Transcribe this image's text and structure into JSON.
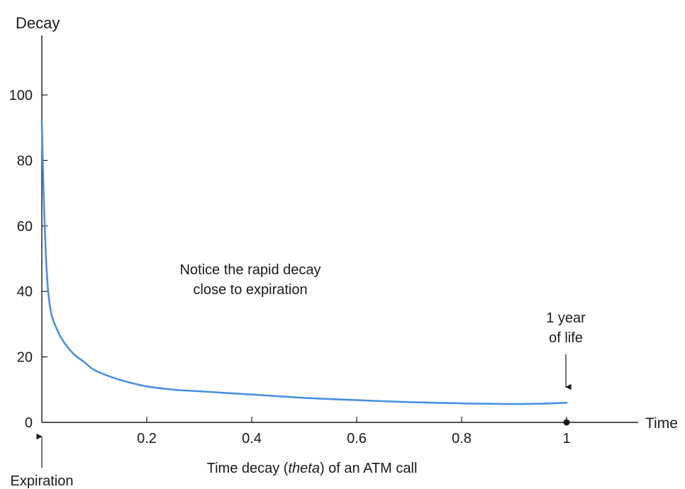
{
  "chart_data": {
    "type": "line",
    "title": "",
    "caption_parts": [
      "Time decay (",
      "theta",
      ") of an ATM call"
    ],
    "ylabel": "Decay",
    "xlabel": "Time",
    "xlim": [
      0,
      1.2
    ],
    "ylim": [
      0,
      118
    ],
    "x_ticks": [
      {
        "value": 0.2,
        "label": "0.2"
      },
      {
        "value": 0.4,
        "label": "0.4"
      },
      {
        "value": 0.6,
        "label": "0.6"
      },
      {
        "value": 0.8,
        "label": "0.8"
      },
      {
        "value": 1.0,
        "label": "1"
      }
    ],
    "y_ticks": [
      {
        "value": 0,
        "label": "0"
      },
      {
        "value": 20,
        "label": "20"
      },
      {
        "value": 40,
        "label": "40"
      },
      {
        "value": 60,
        "label": "60"
      },
      {
        "value": 80,
        "label": "80"
      },
      {
        "value": 100,
        "label": "100"
      }
    ],
    "grid": false,
    "series": [
      {
        "color": "#4a90e2",
        "x": [
          0.0,
          0.002,
          0.005,
          0.008,
          0.012,
          0.016,
          0.02,
          0.03,
          0.04,
          0.06,
          0.08,
          0.1,
          0.13,
          0.16,
          0.2,
          0.25,
          0.3,
          0.35,
          0.4,
          0.5,
          0.6,
          0.7,
          0.8,
          0.85,
          0.9,
          0.95,
          1.0
        ],
        "y": [
          92,
          78,
          62,
          50,
          40,
          35,
          32,
          28,
          25,
          21,
          18.5,
          16,
          14,
          12.5,
          11,
          10,
          9.5,
          9,
          8.5,
          7.5,
          6.8,
          6.2,
          5.8,
          5.7,
          5.6,
          5.7,
          6.0
        ]
      }
    ],
    "annotations": {
      "note_lines": [
        "Notice the rapid decay",
        "close to expiration"
      ],
      "one_year_lines": [
        "1 year",
        "of life"
      ],
      "expiration": "Expiration"
    }
  }
}
